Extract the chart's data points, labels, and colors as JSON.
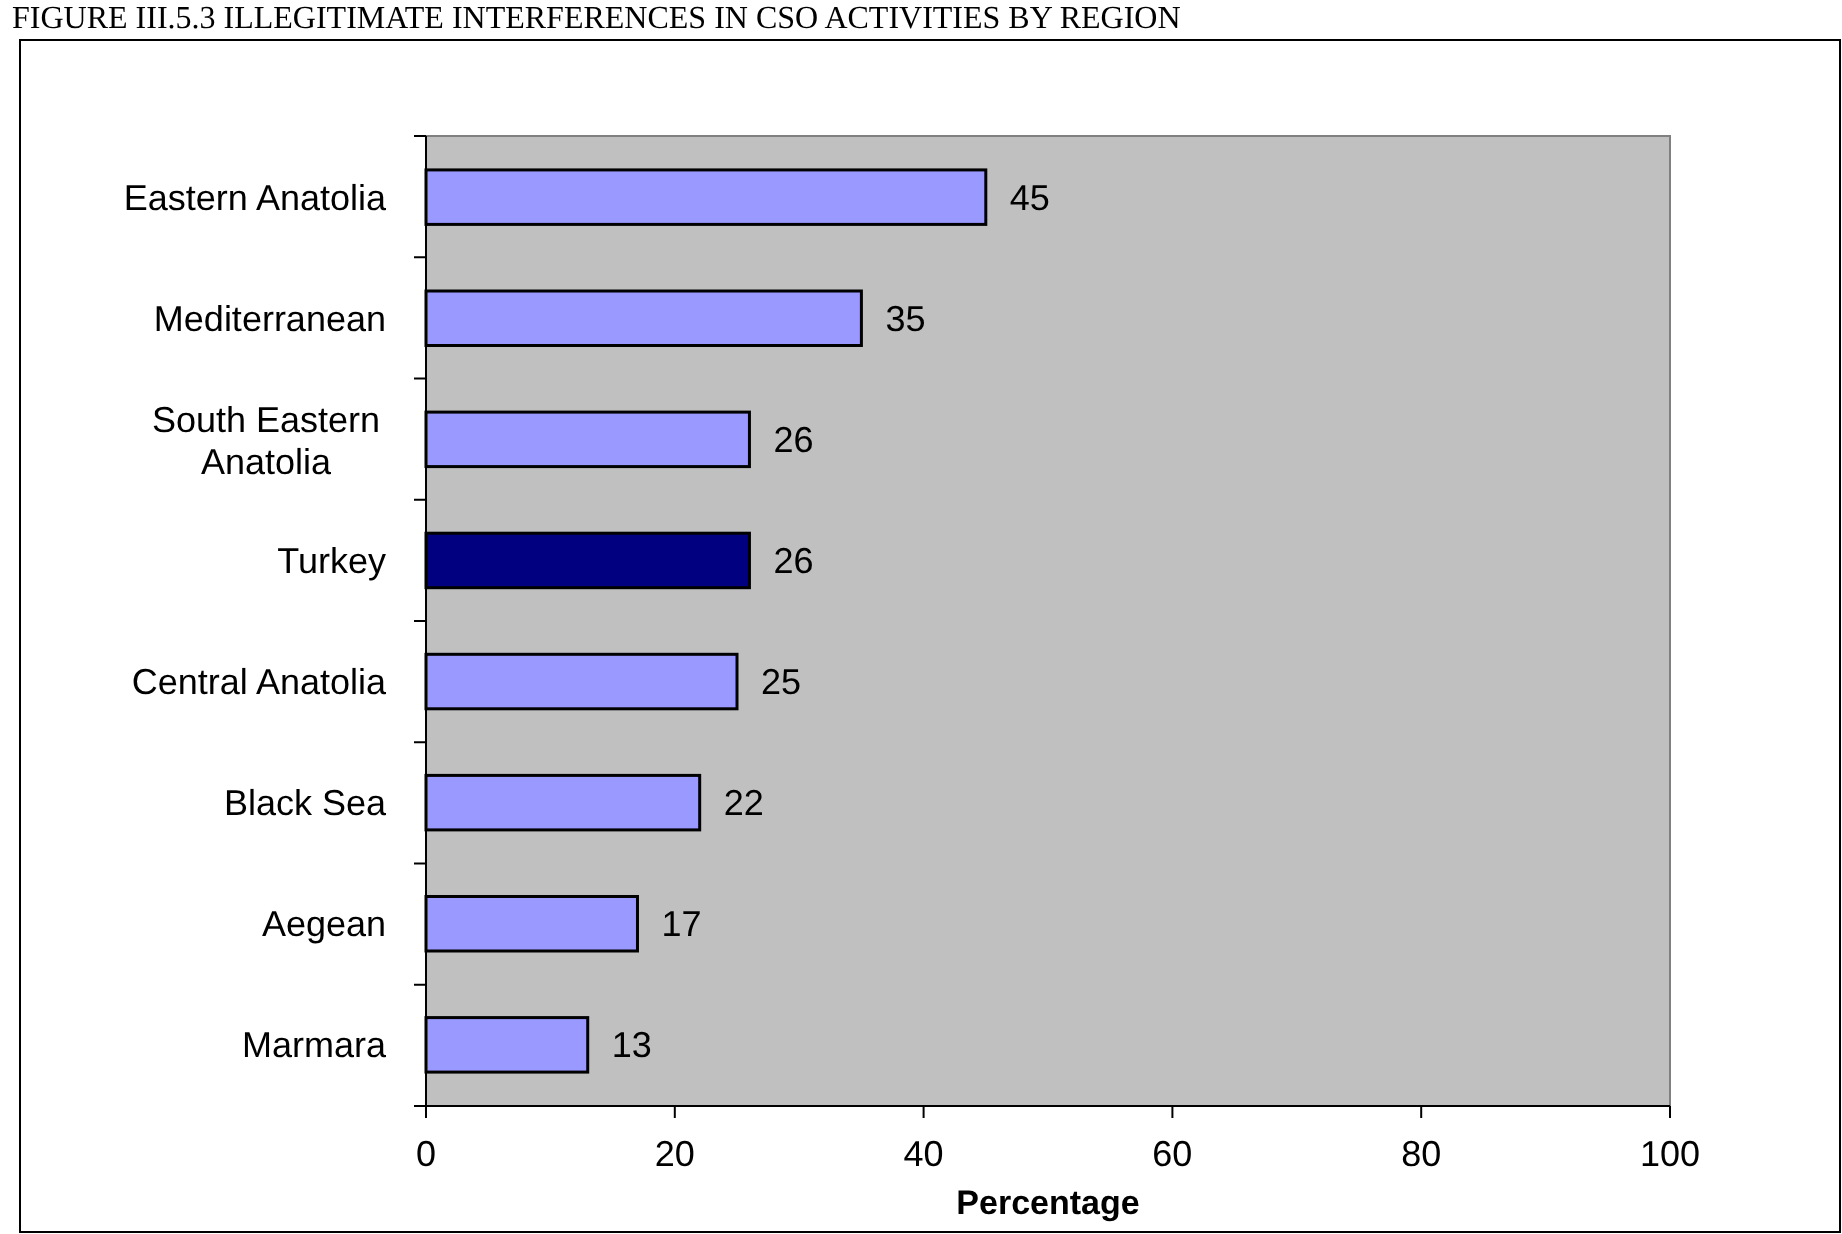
{
  "chart_data": {
    "type": "bar",
    "orientation": "horizontal",
    "title": "FIGURE III.5.3 ILLEGITIMATE INTERFERENCES IN CSO ACTIVITIES BY REGION",
    "categories": [
      "Eastern Anatolia",
      "Mediterranean",
      "South Eastern Anatolia",
      "Turkey",
      "Central Anatolia",
      "Black Sea",
      "Aegean",
      "Marmara"
    ],
    "values": [
      45,
      35,
      26,
      26,
      25,
      22,
      17,
      13
    ],
    "colors": [
      "#9999ff",
      "#9999ff",
      "#9999ff",
      "#000080",
      "#9999ff",
      "#9999ff",
      "#9999ff",
      "#9999ff"
    ],
    "xlabel": "Percentage",
    "xlim": [
      0,
      100
    ],
    "xticks": [
      0,
      20,
      40,
      60,
      80,
      100
    ],
    "data_labels": true,
    "grid": false
  }
}
